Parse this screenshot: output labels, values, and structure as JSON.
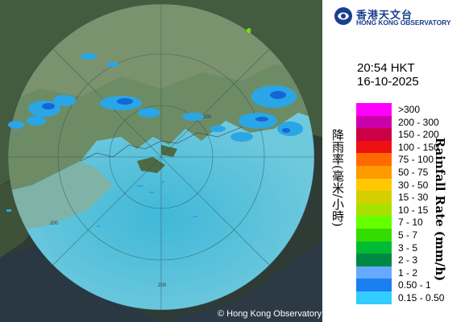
{
  "logo": {
    "cn": "香港天文台",
    "en": "HONG KONG OBSERVATORY",
    "icon": "hko-logo-icon"
  },
  "timestamp": {
    "time": "20:54 HKT",
    "date": "16-10-2025"
  },
  "legend": {
    "title_cn": "降雨率(毫米/小時)",
    "title_en": "Rainfall Rate (mm/h)",
    "items": [
      {
        "label": ">300",
        "color": "#ff00ff"
      },
      {
        "label": "200 - 300",
        "color": "#cc00aa"
      },
      {
        "label": "150 - 200",
        "color": "#cc0044"
      },
      {
        "label": "100 - 150",
        "color": "#ee1111"
      },
      {
        "label": "75 - 100",
        "color": "#ff6a00"
      },
      {
        "label": "50 - 75",
        "color": "#ff9a00"
      },
      {
        "label": "30 - 50",
        "color": "#ffc800"
      },
      {
        "label": "15 - 30",
        "color": "#d4d000"
      },
      {
        "label": "10 - 15",
        "color": "#a8e000"
      },
      {
        "label": "7 - 10",
        "color": "#66ff00"
      },
      {
        "label": "5 - 7",
        "color": "#33dd00"
      },
      {
        "label": "3 - 5",
        "color": "#00bb33"
      },
      {
        "label": "2 - 3",
        "color": "#008844"
      },
      {
        "label": "1 - 2",
        "color": "#66aaff"
      },
      {
        "label": "0.50 - 1",
        "color": "#1a7ff0"
      },
      {
        "label": "0.15 - 0.50",
        "color": "#33ccff"
      }
    ]
  },
  "map": {
    "range_label": "200",
    "copyright": "© Hong Kong Observatory",
    "colors": {
      "land": "#4d6a48",
      "sea_in_range": "#5fb4c8",
      "sea_outside": "#2a3a44",
      "rain_light": "#33bbee",
      "rain_medium": "#1a7ff0"
    }
  }
}
